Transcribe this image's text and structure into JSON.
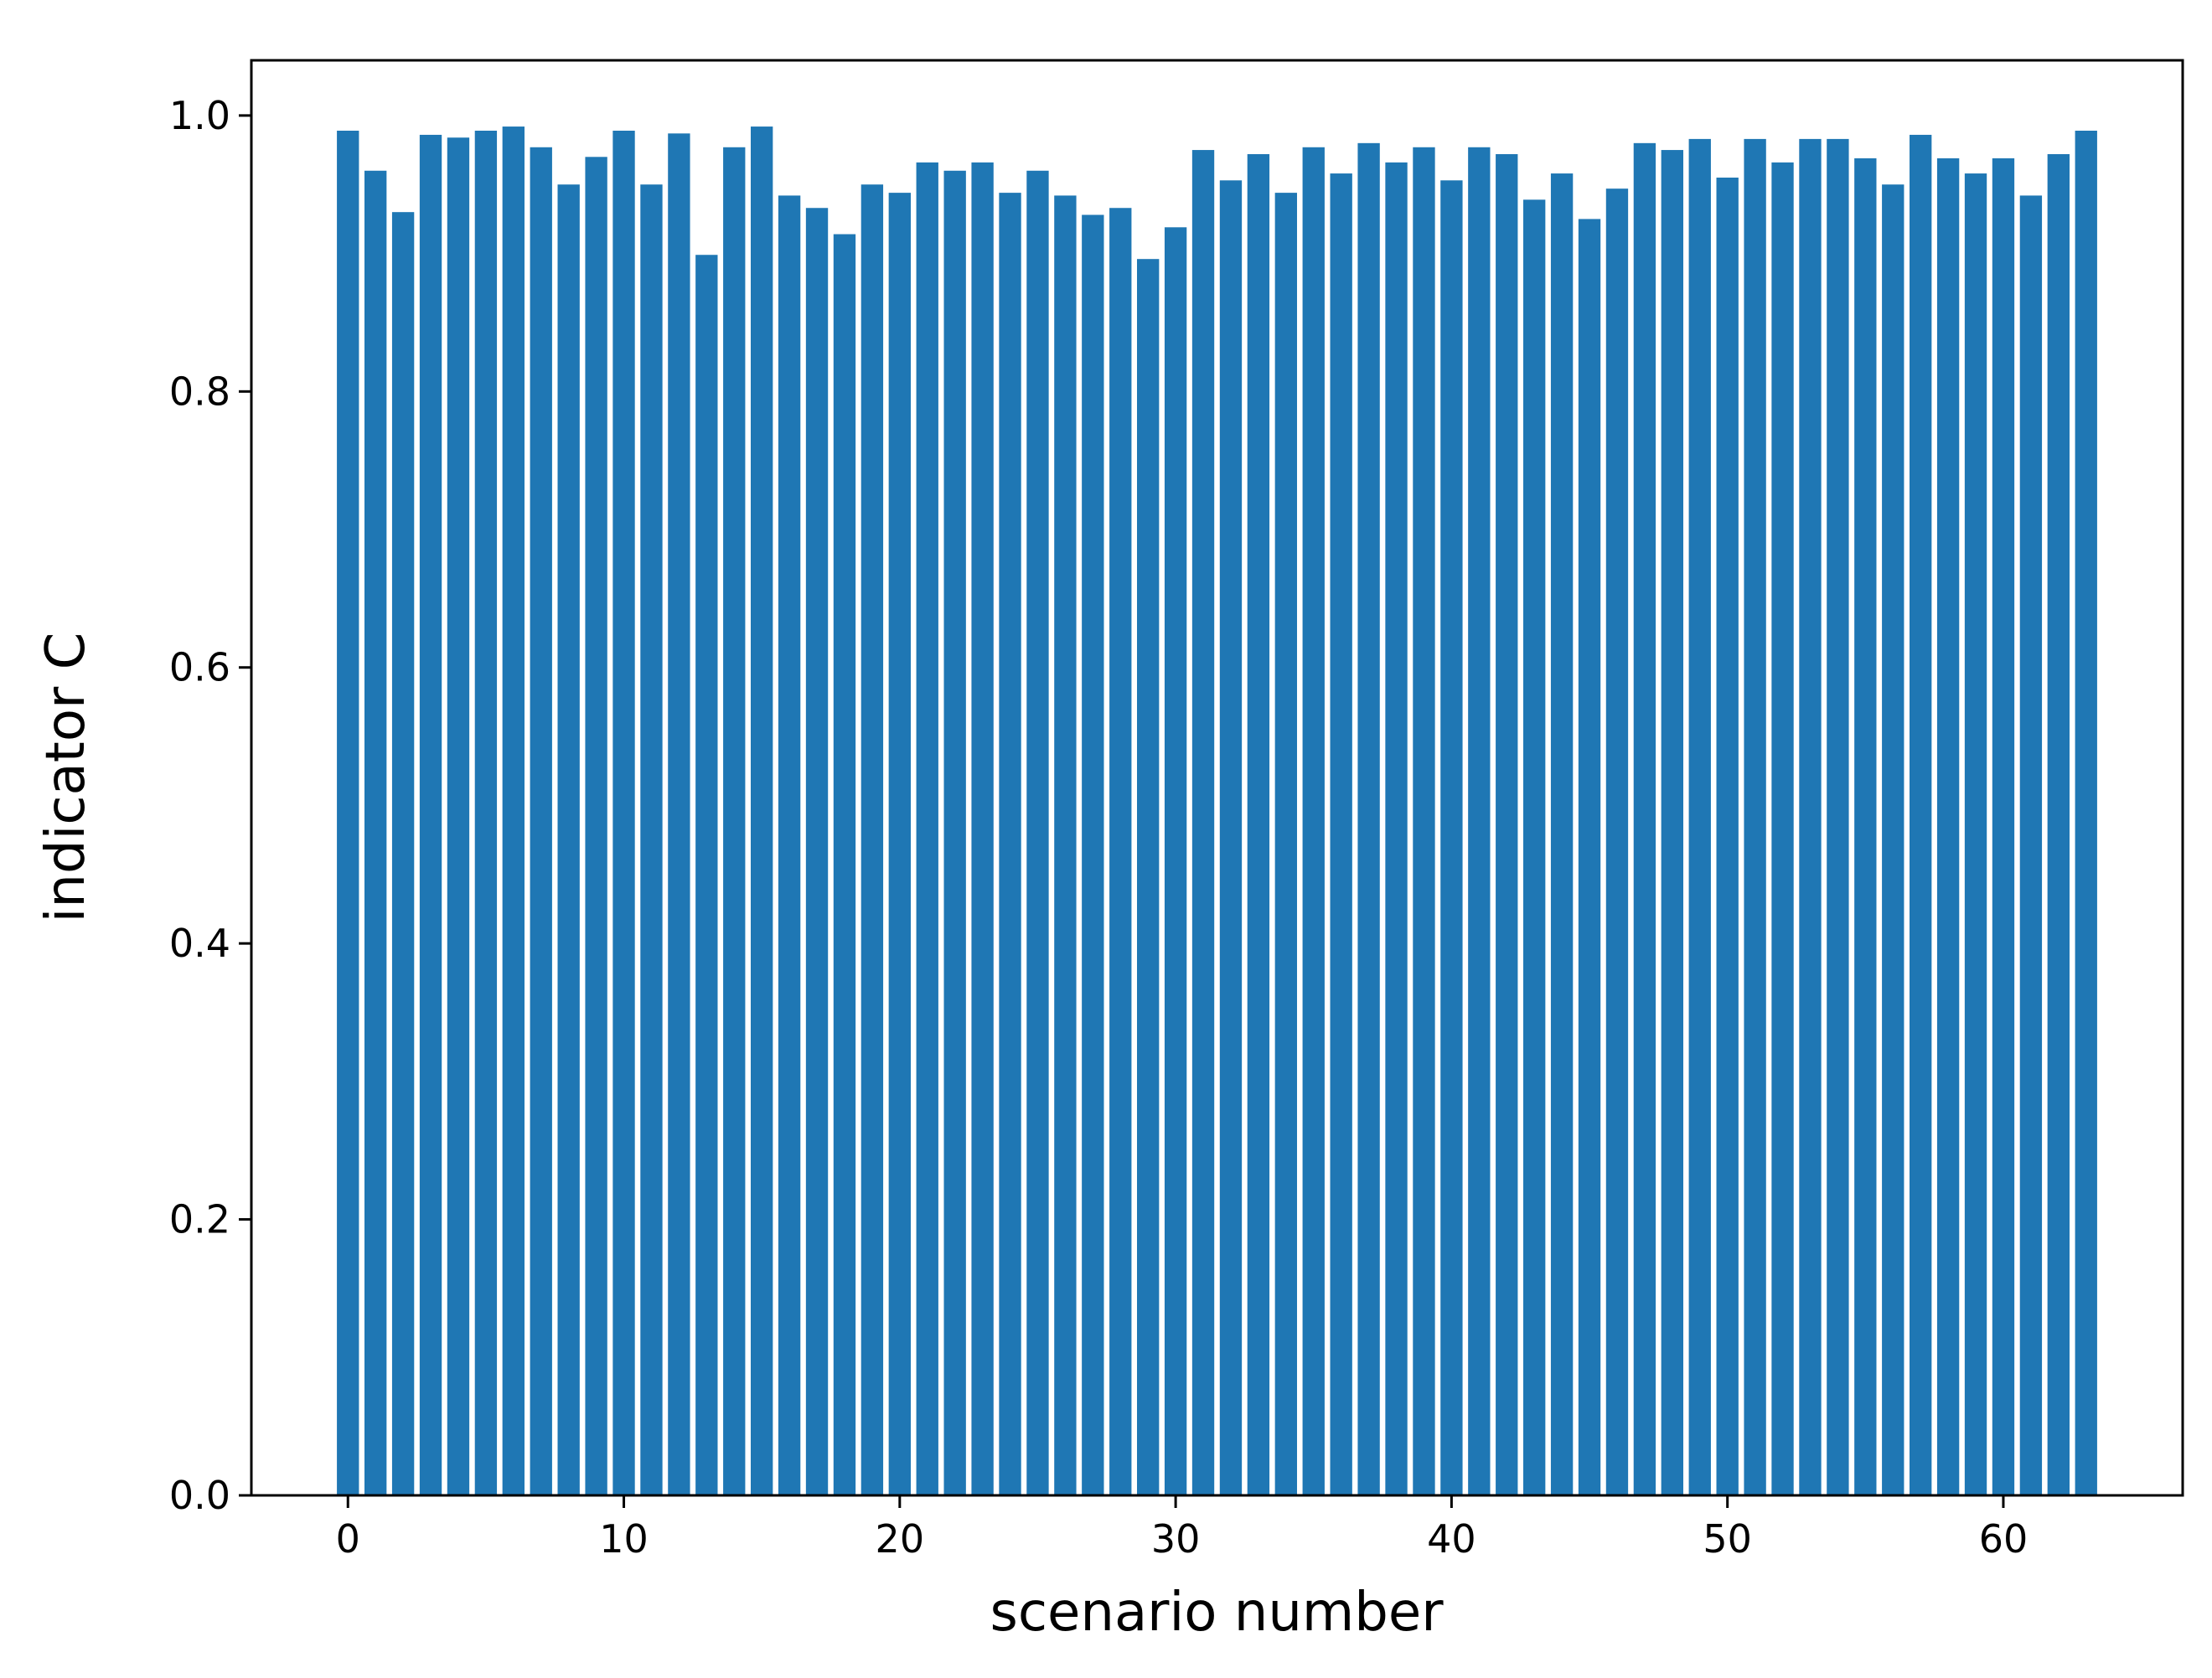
{
  "chart_data": {
    "type": "bar",
    "title": "",
    "xlabel": "scenario number",
    "ylabel": "indicator C",
    "xlim": [
      -3.5,
      66.5
    ],
    "ylim": [
      0,
      1.04
    ],
    "xticks": [
      0,
      10,
      20,
      30,
      40,
      50,
      60
    ],
    "xtick_labels": [
      "0",
      "10",
      "20",
      "30",
      "40",
      "50",
      "60"
    ],
    "yticks": [
      0.0,
      0.2,
      0.4,
      0.6,
      0.8,
      1.0
    ],
    "ytick_labels": [
      "0.0",
      "0.2",
      "0.4",
      "0.6",
      "0.8",
      "1.0"
    ],
    "grid": false,
    "bar_color": "#1f77b4",
    "x": [
      0,
      1,
      2,
      3,
      4,
      5,
      6,
      7,
      8,
      9,
      10,
      11,
      12,
      13,
      14,
      15,
      16,
      17,
      18,
      19,
      20,
      21,
      22,
      23,
      24,
      25,
      26,
      27,
      28,
      29,
      30,
      31,
      32,
      33,
      34,
      35,
      36,
      37,
      38,
      39,
      40,
      41,
      42,
      43,
      44,
      45,
      46,
      47,
      48,
      49,
      50,
      51,
      52,
      53,
      54,
      55,
      56,
      57,
      58,
      59,
      60,
      61,
      62,
      63
    ],
    "values": [
      0.989,
      0.96,
      0.93,
      0.986,
      0.984,
      0.989,
      0.992,
      0.977,
      0.95,
      0.97,
      0.989,
      0.95,
      0.987,
      0.899,
      0.977,
      0.992,
      0.942,
      0.933,
      0.914,
      0.95,
      0.944,
      0.966,
      0.96,
      0.966,
      0.944,
      0.96,
      0.942,
      0.928,
      0.933,
      0.896,
      0.919,
      0.975,
      0.953,
      0.972,
      0.944,
      0.977,
      0.958,
      0.98,
      0.966,
      0.977,
      0.953,
      0.977,
      0.972,
      0.939,
      0.958,
      0.925,
      0.947,
      0.98,
      0.975,
      0.983,
      0.955,
      0.983,
      0.966,
      0.983,
      0.983,
      0.969,
      0.95,
      0.986,
      0.969,
      0.958,
      0.969,
      0.942,
      0.972,
      0.989
    ]
  }
}
